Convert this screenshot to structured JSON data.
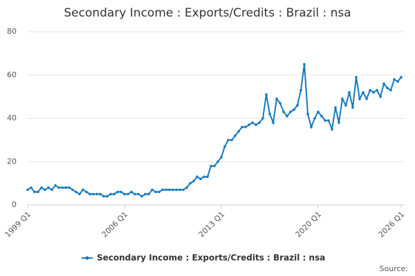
{
  "chart_data": {
    "type": "line",
    "title": "Secondary Income : Exports/Credits : Brazil : nsa",
    "source": "Source:",
    "categories": [
      "1999 Q1",
      null,
      null,
      null,
      null,
      null,
      null,
      null,
      null,
      null,
      null,
      null,
      null,
      null,
      null,
      null,
      null,
      null,
      null,
      null,
      null,
      null,
      null,
      null,
      null,
      null,
      null,
      null,
      "2006 Q1",
      null,
      null,
      null,
      null,
      null,
      null,
      null,
      null,
      null,
      null,
      null,
      null,
      null,
      null,
      null,
      null,
      null,
      null,
      null,
      null,
      null,
      null,
      null,
      null,
      null,
      null,
      null,
      "2013 Q1",
      null,
      null,
      null,
      null,
      null,
      null,
      null,
      null,
      null,
      null,
      null,
      null,
      null,
      null,
      null,
      null,
      null,
      null,
      null,
      null,
      null,
      null,
      null,
      null,
      null,
      null,
      null,
      "2020 Q1",
      null,
      null,
      null,
      null,
      null,
      null,
      null,
      null,
      null,
      null,
      null,
      null,
      null,
      null,
      null,
      null,
      null,
      null,
      null,
      null,
      null,
      null,
      null,
      "2026 Q1"
    ],
    "series": [
      {
        "name": "Secondary Income : Exports/Credits : Brazil : nsa",
        "color": "#1479bd",
        "values": [
          7,
          8,
          6,
          6,
          8,
          7,
          8,
          7,
          9,
          8,
          8,
          8,
          8,
          7,
          6,
          5,
          7,
          6,
          5,
          5,
          5,
          5,
          4,
          4,
          5,
          5,
          6,
          6,
          5,
          5,
          6,
          5,
          5,
          4,
          5,
          5,
          7,
          6,
          6,
          7,
          7,
          7,
          7,
          7,
          7,
          7,
          8,
          10,
          11,
          13,
          12,
          13,
          13,
          18,
          18,
          20,
          22,
          27,
          30,
          30,
          32,
          34,
          36,
          36,
          37,
          38,
          37,
          38,
          40,
          51,
          42,
          38,
          49,
          47,
          43,
          41,
          43,
          44,
          46,
          53,
          65,
          42,
          36,
          40,
          43,
          41,
          39,
          39,
          35,
          45,
          38,
          49,
          46,
          52,
          45,
          59,
          49,
          52,
          49,
          53,
          52,
          53,
          50,
          56,
          54,
          53,
          58,
          57,
          59
        ]
      }
    ],
    "ylim": [
      0,
      80
    ],
    "yticks": [
      0,
      20,
      40,
      60,
      80
    ],
    "grid": true
  }
}
